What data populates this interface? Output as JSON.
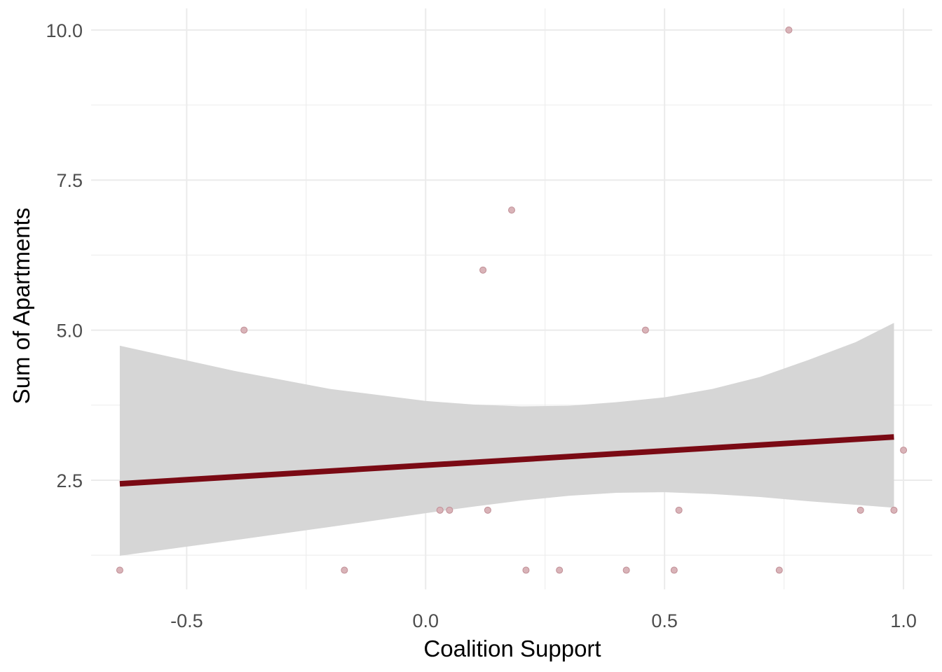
{
  "chart_data": {
    "type": "scatter",
    "title": "",
    "xlabel": "Coalition Support",
    "ylabel": "Sum of Apartments",
    "xlim": [
      -0.7,
      1.06
    ],
    "ylim": [
      0.68,
      10.36
    ],
    "x_ticks": [
      {
        "value": -0.5,
        "label": "-0.5"
      },
      {
        "value": 0.0,
        "label": "0.0"
      },
      {
        "value": 0.5,
        "label": "0.5"
      },
      {
        "value": 1.0,
        "label": "1.0"
      }
    ],
    "y_ticks": [
      {
        "value": 2.5,
        "label": "2.5"
      },
      {
        "value": 5.0,
        "label": "5.0"
      },
      {
        "value": 7.5,
        "label": "7.5"
      },
      {
        "value": 10.0,
        "label": "10.0"
      }
    ],
    "x_minor_grid": [
      -0.25,
      0.25,
      0.75
    ],
    "y_minor_grid": [
      1.25,
      3.75,
      6.25,
      8.75
    ],
    "grid": true,
    "colors": {
      "point_fill": "#d9b3b8",
      "point_stroke": "#c08f96",
      "line": "#7a0a14",
      "ribbon": "#d6d6d6",
      "grid": "#ebebeb"
    },
    "points": [
      {
        "x": -0.64,
        "y": 1
      },
      {
        "x": -0.38,
        "y": 5
      },
      {
        "x": -0.17,
        "y": 1
      },
      {
        "x": 0.03,
        "y": 2
      },
      {
        "x": 0.05,
        "y": 2
      },
      {
        "x": 0.12,
        "y": 6
      },
      {
        "x": 0.13,
        "y": 2
      },
      {
        "x": 0.18,
        "y": 7
      },
      {
        "x": 0.21,
        "y": 1
      },
      {
        "x": 0.28,
        "y": 1
      },
      {
        "x": 0.42,
        "y": 1
      },
      {
        "x": 0.46,
        "y": 5
      },
      {
        "x": 0.52,
        "y": 1
      },
      {
        "x": 0.53,
        "y": 2
      },
      {
        "x": 0.74,
        "y": 1
      },
      {
        "x": 0.76,
        "y": 10
      },
      {
        "x": 0.91,
        "y": 2
      },
      {
        "x": 0.98,
        "y": 2
      },
      {
        "x": 1.0,
        "y": 3
      }
    ],
    "fit_line": [
      {
        "x": -0.64,
        "y": 2.44
      },
      {
        "x": 0.98,
        "y": 3.22
      }
    ],
    "confidence_band": [
      {
        "x": -0.64,
        "lower": 1.24,
        "upper": 4.74
      },
      {
        "x": -0.4,
        "lower": 1.5,
        "upper": 4.32
      },
      {
        "x": -0.2,
        "lower": 1.72,
        "upper": 4.02
      },
      {
        "x": 0.0,
        "lower": 1.95,
        "upper": 3.82
      },
      {
        "x": 0.1,
        "lower": 2.06,
        "upper": 3.76
      },
      {
        "x": 0.2,
        "lower": 2.16,
        "upper": 3.73
      },
      {
        "x": 0.3,
        "lower": 2.24,
        "upper": 3.74
      },
      {
        "x": 0.4,
        "lower": 2.29,
        "upper": 3.8
      },
      {
        "x": 0.5,
        "lower": 2.3,
        "upper": 3.88
      },
      {
        "x": 0.6,
        "lower": 2.27,
        "upper": 4.02
      },
      {
        "x": 0.7,
        "lower": 2.22,
        "upper": 4.22
      },
      {
        "x": 0.8,
        "lower": 2.15,
        "upper": 4.5
      },
      {
        "x": 0.9,
        "lower": 2.09,
        "upper": 4.8
      },
      {
        "x": 0.98,
        "lower": 2.04,
        "upper": 5.12
      }
    ]
  }
}
